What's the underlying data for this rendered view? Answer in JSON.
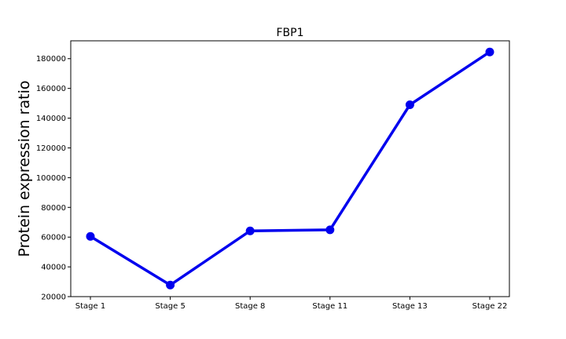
{
  "chart_data": {
    "type": "line",
    "title": "FBP1",
    "xlabel": "",
    "ylabel": "Protein expression ratio",
    "categories": [
      "Stage 1",
      "Stage 5",
      "Stage 8",
      "Stage 11",
      "Stage 13",
      "Stage 22"
    ],
    "series": [
      {
        "values": [
          60500,
          27800,
          64200,
          64900,
          149000,
          184500
        ],
        "color": "#0000ee"
      }
    ],
    "ylim": [
      20000,
      192000
    ],
    "yticks": [
      20000,
      40000,
      60000,
      80000,
      100000,
      120000,
      140000,
      160000,
      180000
    ],
    "ytick_labels": [
      "20000",
      "40000",
      "60000",
      "80000",
      "100000",
      "120000",
      "140000",
      "160000",
      "180000"
    ],
    "grid": false,
    "legend": false
  }
}
